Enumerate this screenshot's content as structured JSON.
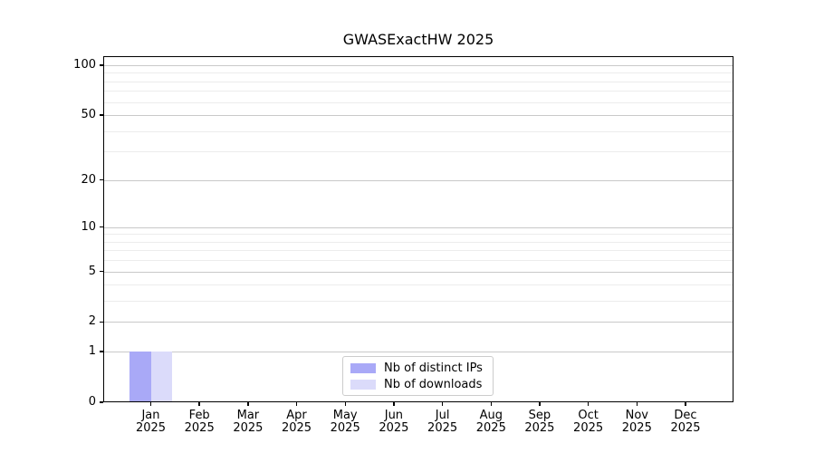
{
  "chart_data": {
    "type": "bar",
    "title": "GWASExactHW 2025",
    "categories": [
      "Jan 2025",
      "Feb 2025",
      "Mar 2025",
      "Apr 2025",
      "May 2025",
      "Jun 2025",
      "Jul 2025",
      "Aug 2025",
      "Sep 2025",
      "Oct 2025",
      "Nov 2025",
      "Dec 2025"
    ],
    "series": [
      {
        "name": "Nb of distinct IPs",
        "color": "#a9a9f7",
        "values": [
          1,
          0,
          0,
          0,
          0,
          0,
          0,
          0,
          0,
          0,
          0,
          0
        ]
      },
      {
        "name": "Nb of downloads",
        "color": "#dbdbfa",
        "values": [
          1,
          0,
          0,
          0,
          0,
          0,
          0,
          0,
          0,
          0,
          0,
          0
        ]
      }
    ],
    "yscale": "log1p",
    "ylim": [
      0,
      112
    ],
    "y_major_ticks": [
      0,
      1,
      2,
      5,
      10,
      20,
      50,
      100
    ],
    "y_minor_gridlines": [
      3,
      4,
      6,
      7,
      8,
      9,
      30,
      40,
      60,
      70,
      80,
      90
    ],
    "grid": true,
    "legend_position": "bottom-center"
  },
  "colors": {
    "background": "#ffffff",
    "axis": "#000000",
    "text": "#000000",
    "grid_major": "#c9c9c9",
    "grid_minor": "#ececec",
    "legend_border": "#cccccc",
    "bar_distinct_ips": "#a9a9f7",
    "bar_downloads": "#dbdbfa"
  }
}
